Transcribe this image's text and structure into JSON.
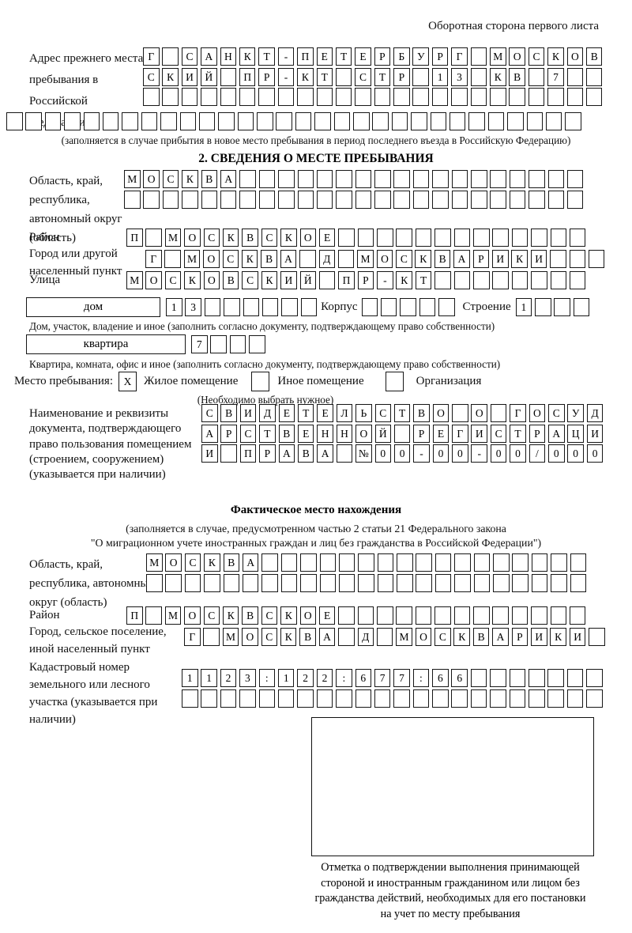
{
  "page_note": "Оборотная сторона первого листа",
  "prev_address": {
    "label": "Адрес прежнего места пребывания в Российской Федерации",
    "row1": "Г САНКТ-ПЕТЕРБУРГ МОСКОВ",
    "row2": "СКИЙ ПР-КТ СТР 13 КВ 7",
    "row3": "",
    "row4": "",
    "note": "(заполняется в случае прибытия в новое место пребывания в период последнего въезда в Российскую Федерацию)"
  },
  "section2": {
    "heading": "2. СВЕДЕНИЯ О МЕСТЕ ПРЕБЫВАНИЯ",
    "oblast": {
      "label": "Область, край, республика, автономный округ (область)",
      "row1": "МОСКВА",
      "row2": ""
    },
    "raion": {
      "label": "Район",
      "row": "П МОСКВСКОЕ"
    },
    "gorod": {
      "label": "Город или другой населенный пункт",
      "row": "Г МОСКВА Д МОСКВАРИКИ"
    },
    "ulitsa": {
      "label": "Улица",
      "row": "МОСКОВСКИЙ ПР-КТ"
    },
    "dom": {
      "type_label": "дом",
      "cells": "13",
      "korpus_label": "Корпус",
      "korpus_cells": "",
      "stroenie_label": "Строение",
      "stroenie_cells": "1",
      "note": "Дом, участок, владение и иное (заполнить согласно документу, подтверждающему право собственности)"
    },
    "kvartira": {
      "type_label": "квартира",
      "cells": "7",
      "note": "Квартира, комната, офис и иное (заполнить согласно документу, подтверждающему право собственности)"
    },
    "mesto": {
      "label": "Место пребывания:",
      "zhiloe_mark": "X",
      "zhiloe_label": "Жилое помещение",
      "inoe_mark": "",
      "inoe_label": "Иное помещение",
      "org_mark": "",
      "org_label": "Организация",
      "note": "(Необходимо выбрать нужное)"
    },
    "doc": {
      "label": "Наименование и реквизиты документа, подтверждающего право пользования помещением (строением, сооружением) (указывается при наличии)",
      "row1": "СВИДЕТЕЛЬСТВО О ГОСУД",
      "row2": "АРСТВЕННОЙ РЕГИСТРАЦИ",
      "row3": "И ПРАВА №00-00-00/000"
    }
  },
  "fact": {
    "heading": "Фактическое место нахождения",
    "note1": "(заполняется в случае, предусмотренном частью 2 статьи 21 Федерального закона",
    "note2": "\"О миграционном учете иностранных граждан и лиц без гражданства в Российской Федерации\")",
    "oblast": {
      "label": "Область, край, республика, автономный округ (область)",
      "row1": "МОСКВА",
      "row2": ""
    },
    "raion": {
      "label": "Район",
      "row": "П МОСКВСКОЕ"
    },
    "gorod": {
      "label": "Город, сельское поселение, иной населенный пункт",
      "row": "Г МОСКВА Д МОСКВАРИКИ"
    },
    "kadastr": {
      "label": "Кадастровый номер земельного или лесного участка (указывается при наличии)",
      "row1": "1123:122:677:66",
      "row2": ""
    },
    "stamp_note_lines": [
      "Отметка о подтверждении выполнения принимающей",
      "стороной и иностранным гражданином или лицом без",
      "гражданства действий, необходимых для его постановки",
      "на учет по месту пребывания"
    ]
  }
}
